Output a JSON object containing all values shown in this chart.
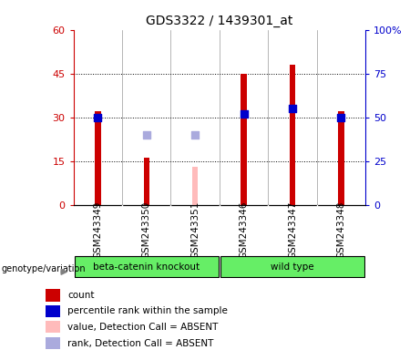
{
  "title": "GDS3322 / 1439301_at",
  "samples": [
    "GSM243349",
    "GSM243350",
    "GSM243351",
    "GSM243346",
    "GSM243347",
    "GSM243348"
  ],
  "bar_values": [
    32,
    16,
    null,
    45,
    48,
    32
  ],
  "bar_color_normal": "#cc0000",
  "bar_color_absent": "#ffbbbb",
  "absent_bar_value": [
    null,
    null,
    13,
    null,
    null,
    null
  ],
  "rank_values": [
    50,
    null,
    null,
    52,
    55,
    50
  ],
  "rank_color_normal": "#0000cc",
  "rank_value_absent": [
    null,
    40,
    40,
    null,
    null,
    null
  ],
  "rank_color_absent": "#aaaadd",
  "ylim_left": [
    0,
    60
  ],
  "ylim_right": [
    0,
    100
  ],
  "yticks_left": [
    0,
    15,
    30,
    45,
    60
  ],
  "yticks_right": [
    0,
    25,
    50,
    75,
    100
  ],
  "ytick_labels_left": [
    "0",
    "15",
    "30",
    "45",
    "60"
  ],
  "ytick_labels_right": [
    "0",
    "25",
    "50",
    "75",
    "100%"
  ],
  "left_axis_color": "#cc0000",
  "right_axis_color": "#0000cc",
  "plot_bg": "white",
  "sample_label_bg": "#c8c8c8",
  "group_color": "#66ee66",
  "bar_width": 0.12,
  "marker_size": 40,
  "legend_items": [
    {
      "label": "count",
      "color": "#cc0000"
    },
    {
      "label": "percentile rank within the sample",
      "color": "#0000cc"
    },
    {
      "label": "value, Detection Call = ABSENT",
      "color": "#ffbbbb"
    },
    {
      "label": "rank, Detection Call = ABSENT",
      "color": "#aaaadd"
    }
  ]
}
